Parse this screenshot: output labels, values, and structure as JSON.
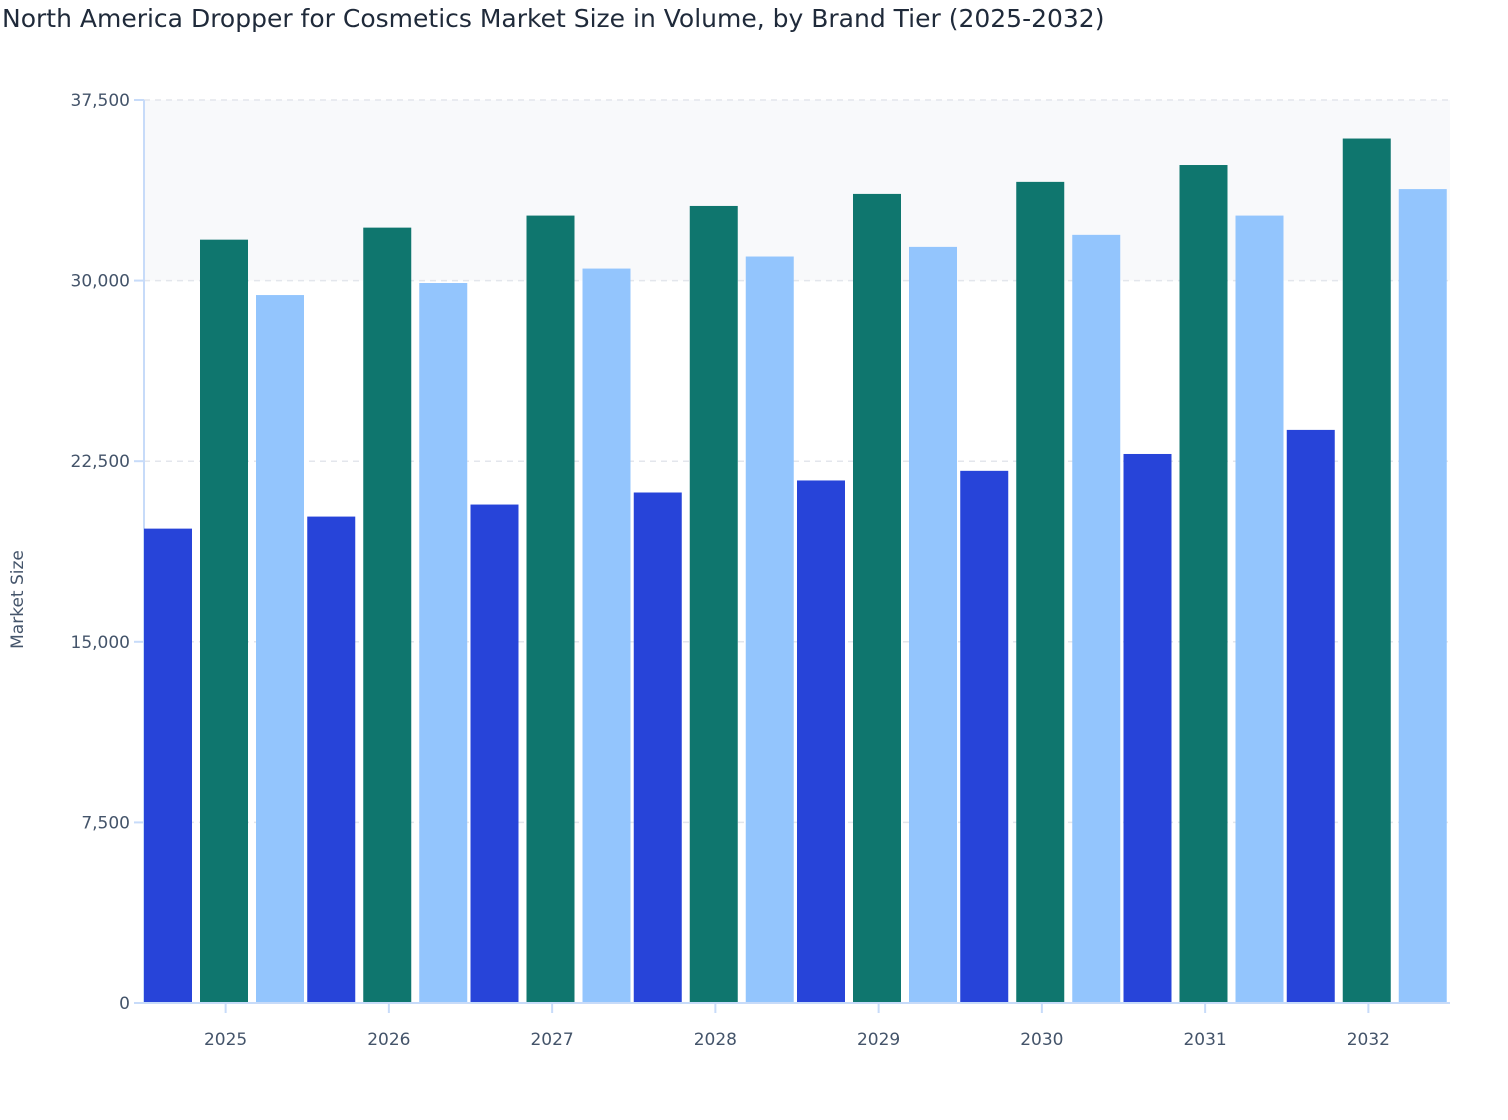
{
  "chart_data": {
    "type": "bar",
    "title": "North America Dropper for Cosmetics Market Size in Volume, by Brand Tier (2025-2032)",
    "xlabel": "",
    "ylabel": "Market Size",
    "categories": [
      "2025",
      "2026",
      "2027",
      "2028",
      "2029",
      "2030",
      "2031",
      "2032"
    ],
    "ylim": [
      0,
      37500
    ],
    "yticks": [
      0,
      7500,
      15000,
      22500,
      30000,
      37500
    ],
    "ytick_labels": [
      "0",
      "7,500",
      "15,000",
      "22,500",
      "30,000",
      "37,500"
    ],
    "grid": true,
    "series": [
      {
        "color": "#2744d9",
        "values": [
          19700,
          20200,
          20700,
          21200,
          21700,
          22100,
          22800,
          23800
        ]
      },
      {
        "color": "#0f766e",
        "values": [
          31700,
          32200,
          32700,
          33100,
          33600,
          34100,
          34800,
          35900
        ]
      },
      {
        "color": "#93c5fd",
        "values": [
          29400,
          29900,
          30500,
          31000,
          31400,
          31900,
          32700,
          33800
        ]
      }
    ]
  }
}
